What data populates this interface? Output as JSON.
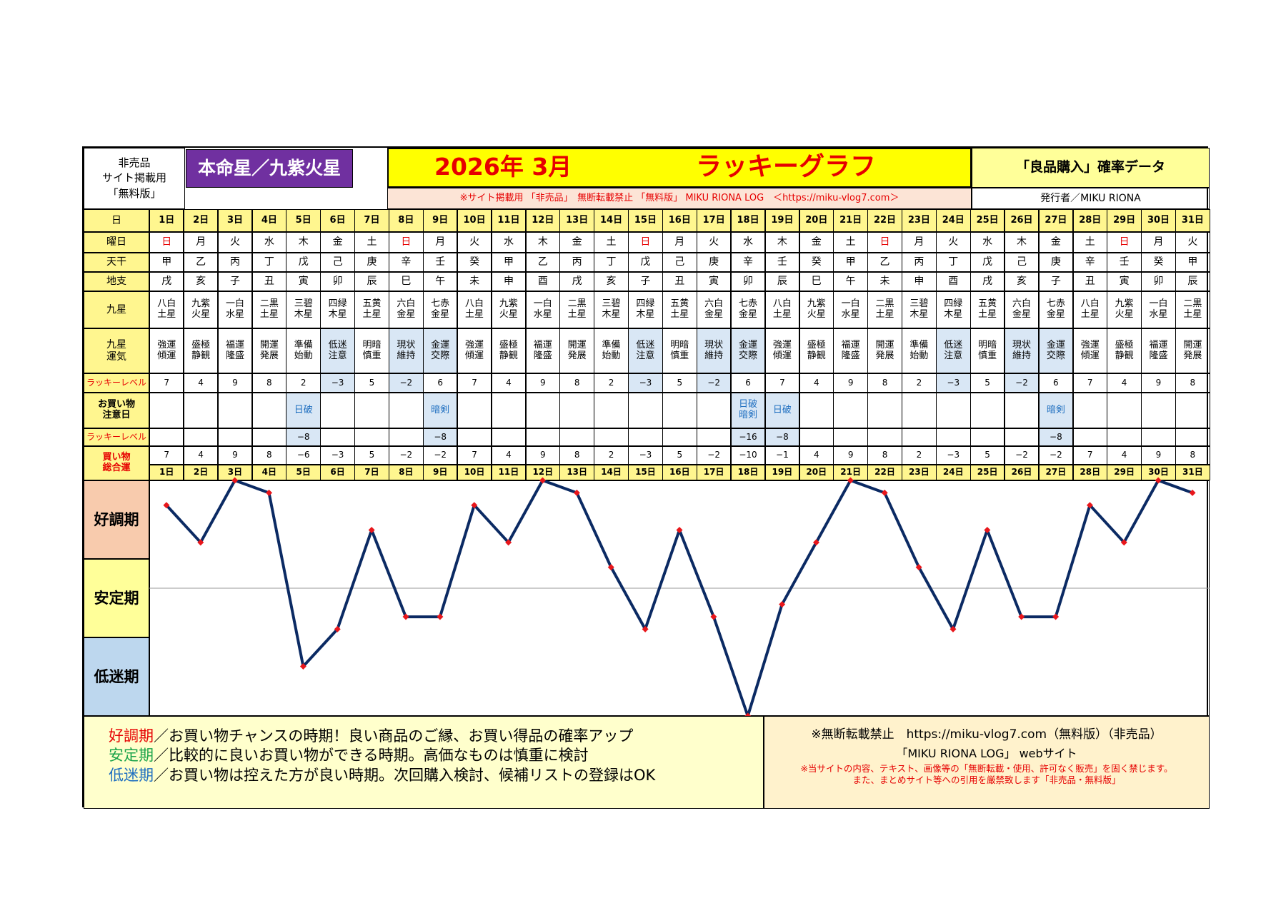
{
  "header": {
    "not_for_sale_lines": [
      "非売品",
      "サイト掲載用",
      "「無料版」"
    ],
    "star_title": "本命星／九紫火星",
    "year_month": "2026年 3月",
    "graph_title": "ラッキーグラフ",
    "data_title": "「良品購入」確率データ",
    "notice": "※サイト掲載用 「非売品」　無断転載禁止 「無料版」 MIKU RIONA LOG　＜https://miku-vlog7.com＞",
    "publisher": "発行者／MIKU RIONA"
  },
  "row_labels": {
    "day": "日",
    "weekday": "曜日",
    "tenkan": "天干",
    "chishi": "地支",
    "kyusei": "九星",
    "kyusei_fortune": [
      "九星",
      "運気"
    ],
    "lucky_level": "ラッキーレベル",
    "shopping_caution": [
      "お買い物",
      "注意日"
    ],
    "lucky_level_2": "ラッキーレベル",
    "shopping_total": [
      "買い物",
      "総合運"
    ]
  },
  "days": [
    "1日",
    "2日",
    "3日",
    "4日",
    "5日",
    "6日",
    "7日",
    "8日",
    "9日",
    "10日",
    "11日",
    "12日",
    "13日",
    "14日",
    "15日",
    "16日",
    "17日",
    "18日",
    "19日",
    "20日",
    "21日",
    "22日",
    "23日",
    "24日",
    "25日",
    "26日",
    "27日",
    "28日",
    "29日",
    "30日",
    "31日"
  ],
  "weekdays": [
    "日",
    "月",
    "火",
    "水",
    "木",
    "金",
    "土",
    "日",
    "月",
    "火",
    "水",
    "木",
    "金",
    "土",
    "日",
    "月",
    "火",
    "水",
    "木",
    "金",
    "土",
    "日",
    "月",
    "火",
    "水",
    "木",
    "金",
    "土",
    "日",
    "月",
    "火"
  ],
  "tenkan": [
    "甲",
    "乙",
    "丙",
    "丁",
    "戊",
    "己",
    "庚",
    "辛",
    "壬",
    "癸",
    "甲",
    "乙",
    "丙",
    "丁",
    "戊",
    "己",
    "庚",
    "辛",
    "壬",
    "癸",
    "甲",
    "乙",
    "丙",
    "丁",
    "戊",
    "己",
    "庚",
    "辛",
    "壬",
    "癸",
    "甲"
  ],
  "chishi": [
    "戌",
    "亥",
    "子",
    "丑",
    "寅",
    "卯",
    "辰",
    "巳",
    "午",
    "未",
    "申",
    "酉",
    "戌",
    "亥",
    "子",
    "丑",
    "寅",
    "卯",
    "辰",
    "巳",
    "午",
    "未",
    "申",
    "酉",
    "戌",
    "亥",
    "子",
    "丑",
    "寅",
    "卯",
    "辰"
  ],
  "kyusei": [
    [
      "八白",
      "土星"
    ],
    [
      "九紫",
      "火星"
    ],
    [
      "一白",
      "水星"
    ],
    [
      "二黒",
      "土星"
    ],
    [
      "三碧",
      "木星"
    ],
    [
      "四緑",
      "木星"
    ],
    [
      "五黄",
      "土星"
    ],
    [
      "六白",
      "金星"
    ],
    [
      "七赤",
      "金星"
    ],
    [
      "八白",
      "土星"
    ],
    [
      "九紫",
      "火星"
    ],
    [
      "一白",
      "水星"
    ],
    [
      "二黒",
      "土星"
    ],
    [
      "三碧",
      "木星"
    ],
    [
      "四緑",
      "木星"
    ],
    [
      "五黄",
      "土星"
    ],
    [
      "六白",
      "金星"
    ],
    [
      "七赤",
      "金星"
    ],
    [
      "八白",
      "土星"
    ],
    [
      "九紫",
      "火星"
    ],
    [
      "一白",
      "水星"
    ],
    [
      "二黒",
      "土星"
    ],
    [
      "三碧",
      "木星"
    ],
    [
      "四緑",
      "木星"
    ],
    [
      "五黄",
      "土星"
    ],
    [
      "六白",
      "金星"
    ],
    [
      "七赤",
      "金星"
    ],
    [
      "八白",
      "土星"
    ],
    [
      "九紫",
      "火星"
    ],
    [
      "一白",
      "水星"
    ],
    [
      "二黒",
      "土星"
    ]
  ],
  "fortune": [
    [
      "強運",
      "傾運"
    ],
    [
      "盛極",
      "静観"
    ],
    [
      "福運",
      "隆盛"
    ],
    [
      "開運",
      "発展"
    ],
    [
      "準備",
      "始動"
    ],
    [
      "低迷",
      "注意"
    ],
    [
      "明暗",
      "慎重"
    ],
    [
      "現状",
      "維持"
    ],
    [
      "金運",
      "交際"
    ],
    [
      "強運",
      "傾運"
    ],
    [
      "盛極",
      "静観"
    ],
    [
      "福運",
      "隆盛"
    ],
    [
      "開運",
      "発展"
    ],
    [
      "準備",
      "始動"
    ],
    [
      "低迷",
      "注意"
    ],
    [
      "明暗",
      "慎重"
    ],
    [
      "現状",
      "維持"
    ],
    [
      "金運",
      "交際"
    ],
    [
      "強運",
      "傾運"
    ],
    [
      "盛極",
      "静観"
    ],
    [
      "福運",
      "隆盛"
    ],
    [
      "開運",
      "発展"
    ],
    [
      "準備",
      "始動"
    ],
    [
      "低迷",
      "注意"
    ],
    [
      "明暗",
      "慎重"
    ],
    [
      "現状",
      "維持"
    ],
    [
      "金運",
      "交際"
    ],
    [
      "強運",
      "傾運"
    ],
    [
      "盛極",
      "静観"
    ],
    [
      "福運",
      "隆盛"
    ],
    [
      "開運",
      "発展"
    ]
  ],
  "lucky_level": [
    "7",
    "4",
    "9",
    "8",
    "2",
    "−3",
    "5",
    "−2",
    "6",
    "7",
    "4",
    "9",
    "8",
    "2",
    "−3",
    "5",
    "−2",
    "6",
    "7",
    "4",
    "9",
    "8",
    "2",
    "−3",
    "5",
    "−2",
    "6",
    "7",
    "4",
    "9",
    "8"
  ],
  "caution": [
    "",
    "",
    "",
    "",
    "日破",
    "",
    "",
    "",
    "暗剣",
    "",
    "",
    "",
    "",
    "",
    "",
    "",
    "",
    "日破\n暗剣",
    "日破",
    "",
    "",
    "",
    "",
    "",
    "",
    "",
    "暗剣",
    "",
    "",
    "",
    ""
  ],
  "caution_level": [
    "",
    "",
    "",
    "",
    "−8",
    "",
    "",
    "",
    "−8",
    "",
    "",
    "",
    "",
    "",
    "",
    "",
    "",
    "−16",
    "−8",
    "",
    "",
    "",
    "",
    "",
    "",
    "",
    "−8",
    "",
    "",
    "",
    ""
  ],
  "total_label": [
    "7",
    "4",
    "9",
    "8",
    "−6",
    "−3",
    "5",
    "−2",
    "−2",
    "7",
    "4",
    "9",
    "8",
    "2",
    "−3",
    "5",
    "−2",
    "−10",
    "−1",
    "4",
    "9",
    "8",
    "2",
    "−3",
    "5",
    "−2",
    "−2",
    "7",
    "4",
    "9",
    "8"
  ],
  "graph_labels": [
    "好調期",
    "安定期",
    "低迷期"
  ],
  "legend": [
    {
      "term": "好調期",
      "text": "／お買い物チャンスの時期！良い商品のご縁、お買い得品の確率アップ"
    },
    {
      "term": "安定期",
      "text": "／比較的に良いお買い物ができる時期。高価なものは慎重に検討"
    },
    {
      "term": "低迷期",
      "text": "／お買い物は控えた方が良い時期。次回購入検討、候補リストの登録はOK"
    }
  ],
  "footer_notice": {
    "line1": "※無断転載禁止　https://miku-vlog7.com（無料版）（非売品）",
    "line2": "「MIKU RIONA LOG」 webサイト",
    "line3": "※当サイトの内容、テキスト、画像等の「無断転載・使用、許可なく販売」を固く禁じます。",
    "line4": "また、まとめサイト等への引用を厳禁致します「非売品・無料版」"
  },
  "colors": {
    "yellow": "#fff68f",
    "light_blue": "#d9e7f5",
    "purple": "#7030a0",
    "header_yellow": "#ffff00",
    "salmon": "#f8cbad",
    "pale_yellow": "#ffff99",
    "steel_blue": "#bdd7ee",
    "line": "#0b2a63",
    "marker": "#e8161b",
    "legend_bg": "#ffffcc",
    "notice_bg": "#fff2cc"
  },
  "chart_data": {
    "type": "line",
    "x": [
      "1日",
      "2日",
      "3日",
      "4日",
      "5日",
      "6日",
      "7日",
      "8日",
      "9日",
      "10日",
      "11日",
      "12日",
      "13日",
      "14日",
      "15日",
      "16日",
      "17日",
      "18日",
      "19日",
      "20日",
      "21日",
      "22日",
      "23日",
      "24日",
      "25日",
      "26日",
      "27日",
      "28日",
      "29日",
      "30日",
      "31日"
    ],
    "series": [
      {
        "values": [
          7,
          4,
          9,
          8,
          -6,
          -3,
          5,
          -2,
          -2,
          7,
          4,
          9,
          8,
          2,
          -3,
          5,
          -2,
          -10,
          -1,
          4,
          9,
          8,
          2,
          -3,
          5,
          -2,
          -2,
          7,
          4,
          9,
          8
        ]
      }
    ],
    "ylim": [
      -10,
      9
    ],
    "bands": [
      "好調期",
      "安定期",
      "低迷期"
    ],
    "grid": false
  }
}
